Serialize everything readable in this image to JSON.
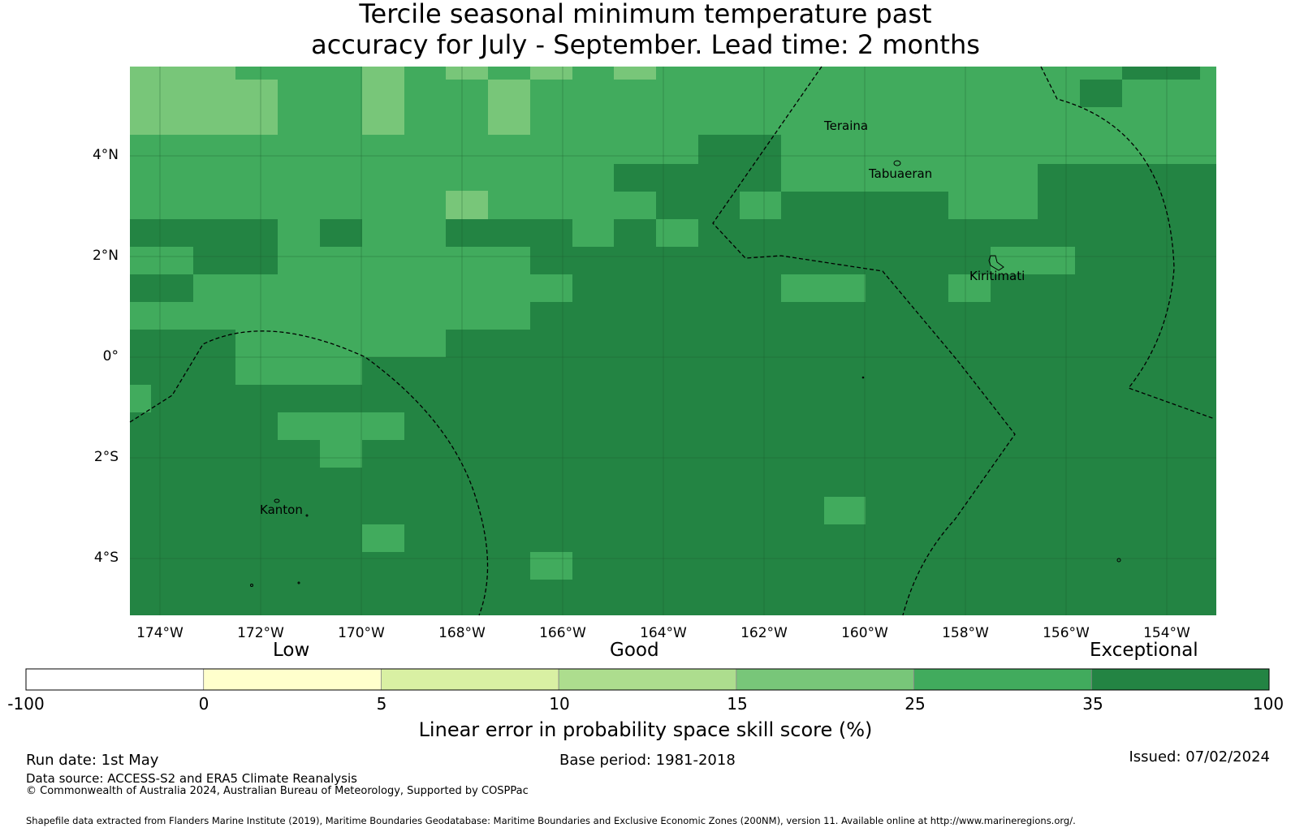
{
  "title": {
    "line1": "Tercile seasonal minimum temperature past",
    "line2": "accuracy for July - September. Lead time: 2 months"
  },
  "map": {
    "lat_labels": [
      "4°N",
      "2°N",
      "0°",
      "2°S",
      "4°S"
    ],
    "lon_labels": [
      "174°W",
      "172°W",
      "170°W",
      "168°W",
      "166°W",
      "164°W",
      "162°W",
      "160°W",
      "158°W",
      "156°W",
      "154°W"
    ],
    "places": [
      "Teraina",
      "Tabuaeran",
      "Kiritimati",
      "Kanton"
    ]
  },
  "colorbar": {
    "categories": [
      "Low",
      "Good",
      "Exceptional"
    ],
    "ticks": [
      "-100",
      "0",
      "5",
      "10",
      "15",
      "25",
      "35",
      "100"
    ],
    "colors": [
      "#ffffff",
      "#ffffcc",
      "#d9f0a3",
      "#addd8e",
      "#78c679",
      "#41ab5d",
      "#238443"
    ],
    "title": "Linear error in probability space skill score (%)"
  },
  "footer": {
    "run_date": "Run date: 1st May",
    "base_period": "Base period: 1981-2018",
    "issued": "Issued: 07/02/2024",
    "data_source": "Data source: ACCESS-S2 and ERA5 Climate Reanalysis",
    "copyright": "© Commonwealth of Australia 2024, Australian Bureau of Meteorology, Supported by COSPPac",
    "shapefile": "Shapefile data extracted from Flanders Marine Institute (2019), Maritime Boundaries Geodatabase: Maritime Boundaries and Exclusive Economic Zones (200NM), version 11. Available online at http://www.marineregions.org/."
  }
}
